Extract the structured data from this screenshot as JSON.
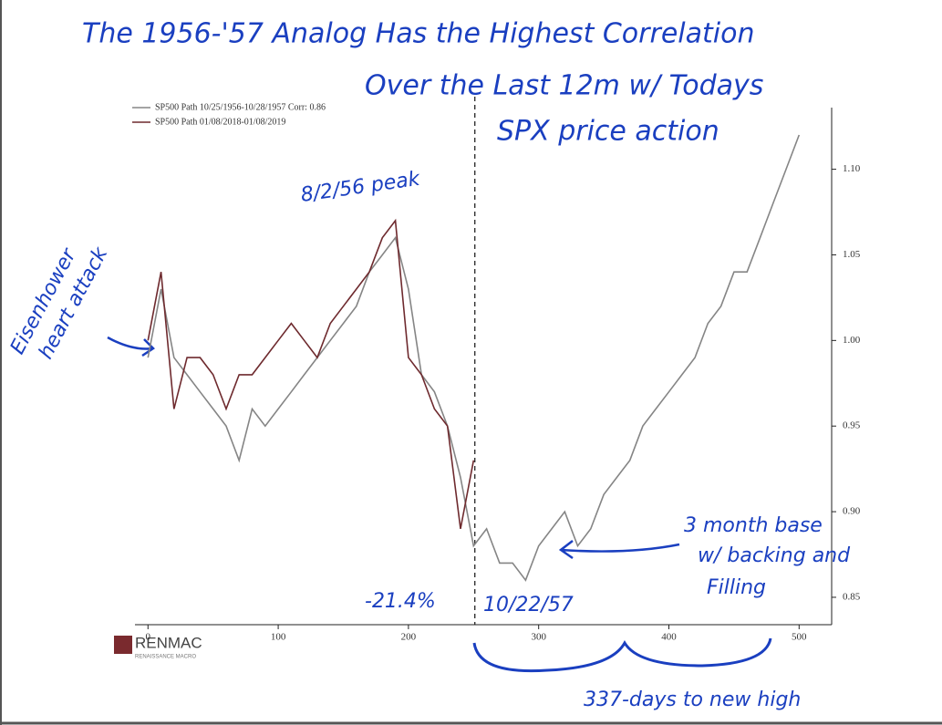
{
  "chart_data": {
    "type": "line",
    "title": [
      "The 1956-'57 Analog Has the Highest Correlation",
      "Over the Last 12m w/ Todays",
      "SPX price action"
    ],
    "x": [
      0,
      10,
      20,
      30,
      40,
      50,
      60,
      70,
      80,
      90,
      100,
      110,
      120,
      130,
      140,
      150,
      160,
      170,
      180,
      190,
      200,
      210,
      220,
      230,
      240,
      250,
      260,
      270,
      280,
      290,
      300,
      310,
      320,
      330,
      340,
      350,
      360,
      370,
      380,
      390,
      400,
      410,
      420,
      430,
      440,
      450,
      460,
      470,
      480,
      490,
      500
    ],
    "series": [
      {
        "name": "SP500 Path 10/25/1956-10/28/1957 Corr: 0.86",
        "color": "#858585",
        "values": [
          0.99,
          1.03,
          0.99,
          0.98,
          0.97,
          0.96,
          0.95,
          0.93,
          0.96,
          0.95,
          0.96,
          0.97,
          0.98,
          0.99,
          1.0,
          1.01,
          1.02,
          1.04,
          1.05,
          1.06,
          1.03,
          0.98,
          0.97,
          0.95,
          0.92,
          0.88,
          0.89,
          0.87,
          0.87,
          0.86,
          0.88,
          0.89,
          0.9,
          0.88,
          0.89,
          0.91,
          0.92,
          0.93,
          0.95,
          0.96,
          0.97,
          0.98,
          0.99,
          1.01,
          1.02,
          1.04,
          1.04,
          1.06,
          1.08,
          1.1,
          1.12
        ]
      },
      {
        "name": "SP500 Path 01/08/2018-01/08/2019",
        "color": "#6e2a2e",
        "values": [
          1.0,
          1.04,
          0.96,
          0.99,
          0.99,
          0.98,
          0.96,
          0.98,
          0.98,
          0.99,
          1.0,
          1.01,
          1.0,
          0.99,
          1.01,
          1.02,
          1.03,
          1.04,
          1.06,
          1.07,
          0.99,
          0.98,
          0.96,
          0.95,
          0.89,
          0.93,
          null,
          null,
          null,
          null,
          null,
          null,
          null,
          null,
          null,
          null,
          null,
          null,
          null,
          null,
          null,
          null,
          null,
          null,
          null,
          null,
          null,
          null,
          null,
          null,
          null
        ]
      }
    ],
    "xlim": [
      -10,
      525
    ],
    "xticks": [
      0,
      100,
      200,
      300,
      400,
      500
    ],
    "ylim": [
      0.834,
      1.136
    ],
    "yticks": [
      {
        "value": 0.85,
        "label": "0.85"
      },
      {
        "value": 0.9,
        "label": "0.90"
      },
      {
        "value": 0.95,
        "label": "0.95"
      },
      {
        "value": 1.0,
        "label": "1.00"
      },
      {
        "value": 1.05,
        "label": "1.05"
      },
      {
        "value": 1.1,
        "label": "1.10"
      }
    ],
    "vline": 251,
    "annotations": {
      "peak": "8/2/56 peak",
      "heart_attack": [
        "Eisenhower",
        "heart attack"
      ],
      "drawdown": "-21.4%",
      "trough_date": "10/22/57",
      "base": [
        "3 month base",
        "w/ backing and",
        "Filling"
      ],
      "duration": "337-days to new high"
    },
    "logo": {
      "name": "RENMAC",
      "tagline": "RENAISSANCE MACRO"
    }
  }
}
